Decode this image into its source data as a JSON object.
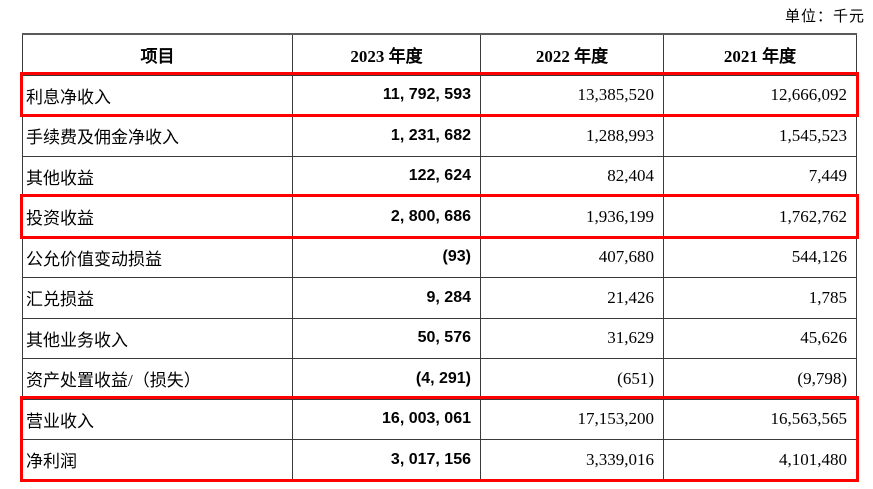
{
  "unit_label": "单位：千元",
  "table": {
    "columns": [
      "项目",
      "2023 年度",
      "2022 年度",
      "2021 年度"
    ],
    "rows": [
      {
        "label": "利息净收入",
        "values": [
          "11, 792, 593",
          "13,385,520",
          "12,666,092"
        ]
      },
      {
        "label": "手续费及佣金净收入",
        "values": [
          "1, 231, 682",
          "1,288,993",
          "1,545,523"
        ]
      },
      {
        "label": "其他收益",
        "values": [
          "122, 624",
          "82,404",
          "7,449"
        ]
      },
      {
        "label": "投资收益",
        "values": [
          "2, 800, 686",
          "1,936,199",
          "1,762,762"
        ]
      },
      {
        "label": "公允价值变动损益",
        "values": [
          "(93)",
          "407,680",
          "544,126"
        ]
      },
      {
        "label": "汇兑损益",
        "values": [
          "9, 284",
          "21,426",
          "1,785"
        ]
      },
      {
        "label": "其他业务收入",
        "values": [
          "50, 576",
          "31,629",
          "45,626"
        ]
      },
      {
        "label": "资产处置收益/（损失）",
        "values": [
          "(4, 291)",
          "(651)",
          "(9,798)"
        ]
      },
      {
        "label": "营业收入",
        "values": [
          "16, 003, 061",
          "17,153,200",
          "16,563,565"
        ]
      },
      {
        "label": "净利润",
        "values": [
          "3, 017, 156",
          "3,339,016",
          "4,101,480"
        ]
      }
    ],
    "highlight_groups": [
      [
        0,
        0
      ],
      [
        3,
        3
      ],
      [
        8,
        9
      ]
    ],
    "highlight_color": "#FF0000"
  }
}
